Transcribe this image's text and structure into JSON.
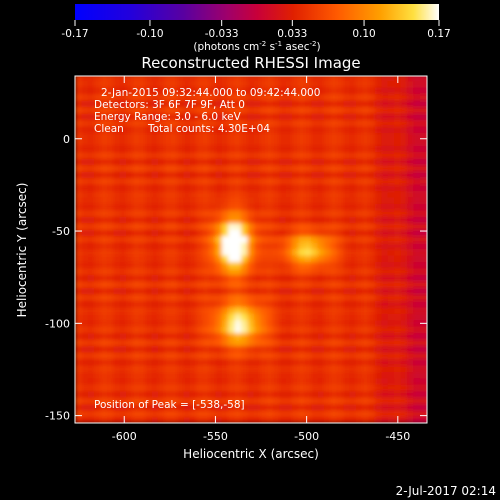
{
  "chart_data": {
    "type": "heatmap",
    "title": "Reconstructed RHESSI Image",
    "xlabel": "Heliocentric X (arcsec)",
    "ylabel": "Heliocentric Y (arcsec)",
    "xlim": [
      -627,
      -434
    ],
    "ylim": [
      -154,
      34
    ],
    "xticks": [
      -600,
      -550,
      -500,
      -450
    ],
    "yticks": [
      0,
      -50,
      -100,
      -150
    ],
    "x_tick_labels": [
      "-600",
      "-550",
      "-500",
      "-450"
    ],
    "y_tick_labels": [
      "0",
      "-50",
      "-100",
      "-150"
    ],
    "grid": false,
    "colorbar": {
      "range": [
        -0.17,
        0.17
      ],
      "ticks": [
        -0.17,
        -0.1,
        -0.033,
        0.033,
        0.1,
        0.17
      ],
      "tick_labels": [
        "-0.17",
        "-0.10",
        "-0.033",
        "0.033",
        "0.10",
        "0.17"
      ],
      "units_main": "(photons cm",
      "units_sup1": "-2",
      "units_mid1": " s",
      "units_sup2": "-1",
      "units_mid2": " asec",
      "units_sup3": "-2",
      "units_end": ")"
    },
    "sources": [
      {
        "x": -540,
        "y": -57,
        "peak": 0.17,
        "sx": 7,
        "sy": 10
      },
      {
        "x": -537,
        "y": -100,
        "peak": 0.12,
        "sx": 9,
        "sy": 8
      },
      {
        "x": -499,
        "y": -60,
        "peak": 0.1,
        "sx": 9,
        "sy": 6
      }
    ],
    "annotations": {
      "time": "2-Jan-2015 09:32:44.000 to 09:42:44.000",
      "detectors": "Detectors: 3F 6F 7F 9F, Att 0",
      "energy": "Energy Range: 3.0 - 6.0 keV",
      "clean": "Clean",
      "counts": "Total counts: 4.30E+04",
      "peak": "Position of Peak = [-538,-58]"
    },
    "footer_date": "2-Jul-2017 02:14"
  }
}
